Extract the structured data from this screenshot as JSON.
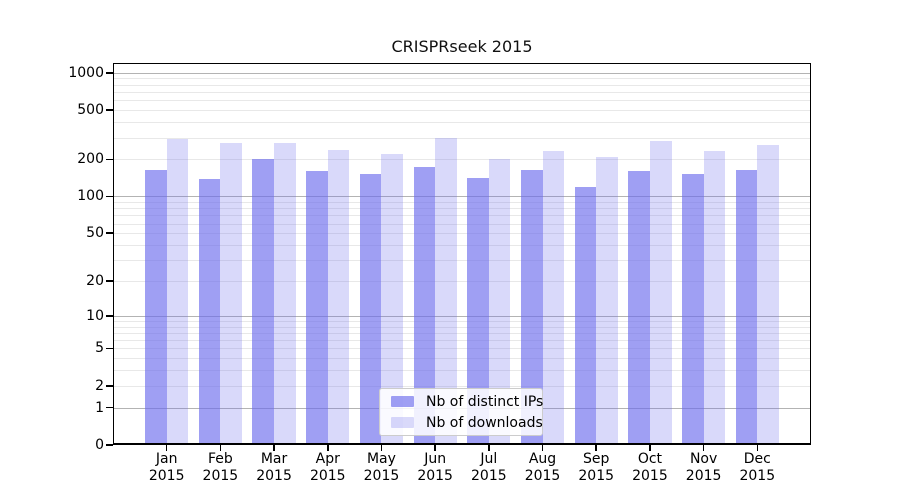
{
  "title": "CRISPRseek 2015",
  "legend": {
    "position": "lower center",
    "items": [
      {
        "label": "Nb of distinct IPs"
      },
      {
        "label": "Nb of downloads"
      }
    ]
  },
  "colors": {
    "ips_bar": "rgba(108,108,236,0.65)",
    "downloads_bar": "rgba(108,108,236,0.26)",
    "grid_major": "#b3b3b3",
    "grid_minor": "#e8e8e8",
    "axis": "#000000",
    "legend_border": "#cccccc"
  },
  "chart_data": {
    "type": "bar",
    "title": "CRISPRseek 2015",
    "categories": [
      "Jan",
      "Feb",
      "Mar",
      "Apr",
      "May",
      "Jun",
      "Jul",
      "Aug",
      "Sep",
      "Oct",
      "Nov",
      "Dec"
    ],
    "category_year": "2015",
    "series": [
      {
        "name": "Nb of distinct IPs",
        "values": [
          165,
          139,
          200,
          161,
          153,
          172,
          140,
          165,
          119,
          160,
          151,
          165
        ]
      },
      {
        "name": "Nb of downloads",
        "values": [
          291,
          269,
          272,
          237,
          220,
          295,
          200,
          233,
          209,
          282,
          234,
          260
        ]
      }
    ],
    "yscale": "log10(value+1)",
    "yticks": [
      0,
      1,
      2,
      5,
      10,
      20,
      50,
      100,
      200,
      500,
      1000
    ],
    "ylim": [
      0,
      1200
    ],
    "grid": "horizontal major and minor",
    "legend_position": "lower center"
  }
}
